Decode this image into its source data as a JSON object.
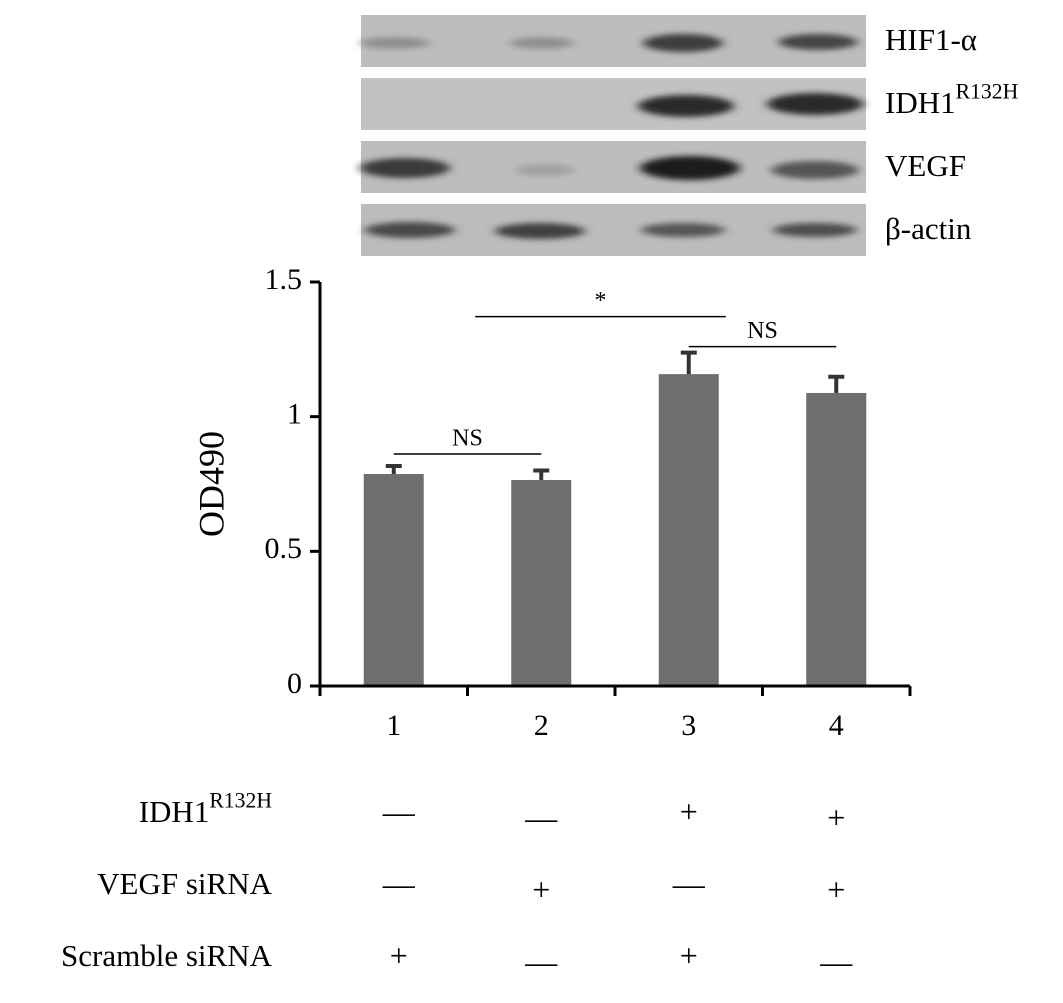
{
  "blot": {
    "rows": [
      {
        "label": "HIF1-α"
      },
      {
        "label": "IDH1",
        "superscript": "R132H"
      },
      {
        "label": "VEGF"
      },
      {
        "label": "β-actin"
      }
    ]
  },
  "chart_data": {
    "type": "bar",
    "ylabel": "OD490",
    "categories": [
      "1",
      "2",
      "3",
      "4"
    ],
    "values": [
      0.787,
      0.765,
      1.158,
      1.088
    ],
    "errors": [
      0.03,
      0.035,
      0.08,
      0.06
    ],
    "color": "#6e6e6e",
    "error_color": "#333333",
    "ylim": [
      0,
      1.5
    ],
    "yticks": [
      0,
      0.5,
      1,
      1.5
    ],
    "annotations": [
      {
        "label": "NS",
        "between": [
          "1",
          "2"
        ]
      },
      {
        "label": "*",
        "between": [
          "2",
          "3"
        ]
      },
      {
        "label": "NS",
        "between": [
          "3",
          "4"
        ]
      }
    ]
  },
  "conditions": {
    "rows": [
      {
        "label": "IDH1",
        "superscript": "R132H",
        "signs": [
          "—",
          "—",
          "+",
          "+"
        ]
      },
      {
        "label": "VEGF siRNA",
        "signs": [
          "—",
          "+",
          "—",
          "+"
        ]
      },
      {
        "label": "Scramble siRNA",
        "signs": [
          "+",
          "—",
          "+",
          "—"
        ]
      }
    ]
  }
}
